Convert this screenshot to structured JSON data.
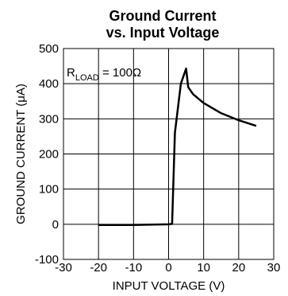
{
  "chart_data": {
    "type": "line",
    "title_line1": "Ground Current",
    "title_line2": "vs. Input Voltage",
    "xlabel": "INPUT VOLTAGE (V)",
    "ylabel": "GROUND CURRENT (μA)",
    "xlim": [
      -30,
      30
    ],
    "ylim": [
      -100,
      500
    ],
    "xticks": [
      -30,
      -20,
      -10,
      0,
      10,
      20,
      30
    ],
    "yticks": [
      -100,
      0,
      100,
      200,
      300,
      400,
      500
    ],
    "grid": true,
    "annotation": {
      "prefix": "R",
      "subscript": "LOAD",
      "suffix": " = 100Ω"
    },
    "series": [
      {
        "x": [
          -20,
          -10,
          0,
          1,
          1.8,
          3.5,
          5,
          5.6,
          7,
          10,
          15,
          20,
          25
        ],
        "y": [
          -2,
          -2,
          0,
          1,
          260,
          400,
          443,
          390,
          370,
          345,
          316,
          296,
          280
        ]
      }
    ]
  }
}
